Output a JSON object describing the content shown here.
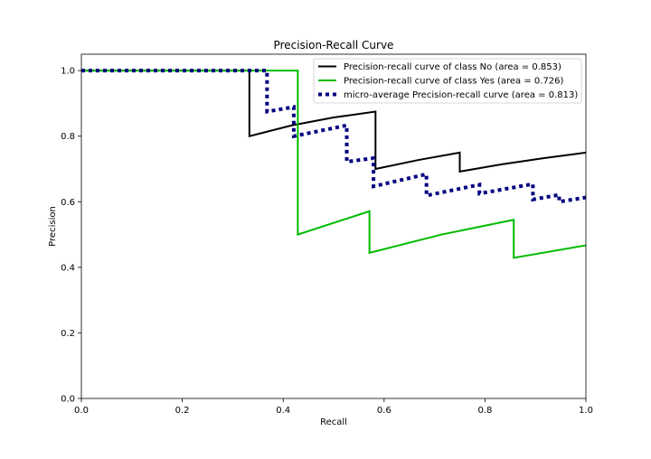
{
  "chart_data": {
    "type": "line",
    "title": "Precision-Recall Curve",
    "xlabel": "Recall",
    "ylabel": "Precision",
    "xlim": [
      0.0,
      1.0
    ],
    "ylim": [
      0.0,
      1.05
    ],
    "xticks": [
      "0.0",
      "0.2",
      "0.4",
      "0.6",
      "0.8",
      "1.0"
    ],
    "yticks": [
      "0.0",
      "0.2",
      "0.4",
      "0.6",
      "0.8",
      "1.0"
    ],
    "grid": false,
    "legend_position": "top-right",
    "series": [
      {
        "name": "Precision-recall curve of class No (area = 0.853)",
        "color": "#000000",
        "style": "solid",
        "points": [
          [
            0.0,
            1.0
          ],
          [
            0.333,
            1.0
          ],
          [
            0.333,
            0.8
          ],
          [
            0.417,
            0.833
          ],
          [
            0.5,
            0.857
          ],
          [
            0.583,
            0.875
          ],
          [
            0.583,
            0.7
          ],
          [
            0.667,
            0.727
          ],
          [
            0.75,
            0.75
          ],
          [
            0.75,
            0.692
          ],
          [
            0.833,
            0.714
          ],
          [
            0.917,
            0.733
          ],
          [
            1.0,
            0.75
          ]
        ]
      },
      {
        "name": "Precision-recall curve of class Yes (area = 0.726)",
        "color": "#00bb00",
        "style": "solid",
        "points": [
          [
            0.0,
            1.0
          ],
          [
            0.429,
            1.0
          ],
          [
            0.429,
            0.5
          ],
          [
            0.571,
            0.571
          ],
          [
            0.571,
            0.444
          ],
          [
            0.714,
            0.5
          ],
          [
            0.857,
            0.545
          ],
          [
            0.857,
            0.429
          ],
          [
            1.0,
            0.467
          ]
        ]
      },
      {
        "name": "micro-average Precision-recall curve (area = 0.813)",
        "color": "#000080",
        "style": "dotted",
        "points": [
          [
            0.0,
            1.0
          ],
          [
            0.368,
            1.0
          ],
          [
            0.368,
            0.875
          ],
          [
            0.421,
            0.889
          ],
          [
            0.421,
            0.8
          ],
          [
            0.526,
            0.833
          ],
          [
            0.526,
            0.722
          ],
          [
            0.579,
            0.733
          ],
          [
            0.579,
            0.647
          ],
          [
            0.684,
            0.684
          ],
          [
            0.684,
            0.619
          ],
          [
            0.789,
            0.652
          ],
          [
            0.789,
            0.625
          ],
          [
            0.895,
            0.654
          ],
          [
            0.895,
            0.607
          ],
          [
            0.947,
            0.621
          ],
          [
            0.947,
            0.6
          ],
          [
            1.0,
            0.613
          ]
        ]
      }
    ]
  }
}
